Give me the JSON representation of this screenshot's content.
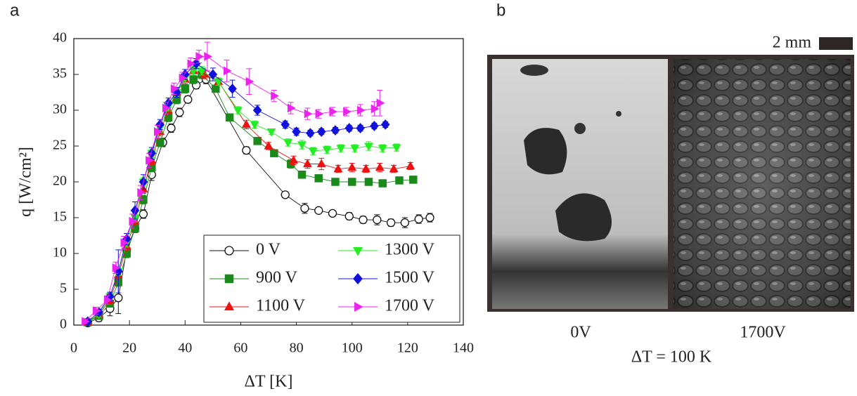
{
  "chart_data": {
    "type": "scatter",
    "panel_label": "a",
    "x_label": "ΔT [K]",
    "y_label": "q [W/cm²]",
    "xlim": [
      0,
      140
    ],
    "xticks": [
      0,
      20,
      40,
      60,
      80,
      100,
      120,
      140
    ],
    "ylim": [
      0,
      40
    ],
    "yticks": [
      0,
      5,
      10,
      15,
      20,
      25,
      30,
      35,
      40
    ],
    "legend": "lower right",
    "series": [
      {
        "name": "0 V",
        "color": "#111111",
        "marker": "circle-open",
        "x": [
          5,
          9,
          13,
          16,
          19,
          22,
          25,
          28,
          32,
          35,
          38,
          41,
          44,
          47.5,
          62,
          76,
          83,
          88,
          93,
          99,
          104,
          109,
          114,
          119,
          124,
          128
        ],
        "values": [
          0.3,
          1,
          2.3,
          3.8,
          10.5,
          13.5,
          15.5,
          21,
          25.5,
          27.5,
          29.7,
          31.5,
          33.5,
          34.3,
          24.4,
          18.2,
          16.3,
          16,
          15.6,
          15.2,
          14.7,
          14.7,
          14.3,
          14.3,
          14.8,
          15
        ],
        "errors": [
          0.4,
          0.5,
          1,
          2.2,
          0.8,
          0.6,
          0.6,
          0.8,
          0.6,
          0.6,
          0.6,
          0.5,
          0.5,
          0.6,
          0.5,
          0.4,
          0.7,
          0.4,
          0.4,
          0.5,
          0.5,
          0.7,
          0.5,
          0.7,
          0.6,
          0.6
        ]
      },
      {
        "name": "900 V",
        "color": "#1a8a1a",
        "marker": "square",
        "x": [
          5,
          9,
          13,
          16,
          19,
          22,
          25,
          28,
          31,
          34,
          37,
          40,
          43,
          46,
          51,
          56,
          66,
          72,
          78,
          82,
          88,
          94,
          100,
          106,
          111,
          117,
          122
        ],
        "values": [
          0.4,
          1.3,
          3,
          6,
          10,
          13.5,
          17.5,
          22,
          25.5,
          29,
          31.5,
          33,
          34.3,
          35,
          33,
          29,
          25.7,
          24,
          22.5,
          21,
          20.5,
          20,
          20,
          20,
          19.8,
          20.2,
          20.3
        ],
        "errors": [
          0.3,
          0.4,
          0.5,
          0.6,
          0.6,
          0.6,
          0.6,
          0.6,
          0.6,
          0.6,
          0.6,
          0.6,
          0.6,
          0.6,
          0.5,
          0.5,
          0.4,
          0.4,
          0.6,
          0.4,
          0.4,
          0.4,
          0.4,
          0.4,
          0.5,
          0.4,
          0.5
        ]
      },
      {
        "name": "1100 V",
        "color": "#ee1111",
        "marker": "triangle-up",
        "x": [
          5,
          9,
          13,
          16,
          19,
          22,
          25,
          28,
          31,
          34,
          37,
          40,
          43,
          47,
          52,
          62,
          70,
          79,
          84,
          89,
          95,
          100,
          105,
          110,
          115,
          121
        ],
        "values": [
          0.4,
          1.5,
          3.5,
          7,
          11,
          14.5,
          19,
          23,
          27,
          30,
          32.5,
          34.3,
          35.5,
          35,
          34,
          28,
          25,
          23,
          22.5,
          22.5,
          21.8,
          22,
          21.8,
          22,
          21.8,
          22.2
        ],
        "errors": [
          0.3,
          0.4,
          0.5,
          0.6,
          0.6,
          0.6,
          0.6,
          0.6,
          0.6,
          0.6,
          0.6,
          0.6,
          0.6,
          0.6,
          0.5,
          0.6,
          0.5,
          0.6,
          0.6,
          0.8,
          0.5,
          0.6,
          0.5,
          0.6,
          0.5,
          0.5
        ]
      },
      {
        "name": "1300 V",
        "color": "#22ee22",
        "marker": "triangle-down",
        "x": [
          5,
          9,
          13,
          16,
          19,
          22,
          25,
          28,
          31,
          34,
          37,
          40,
          43,
          46,
          52,
          59,
          65,
          71,
          77,
          82,
          86,
          91,
          96,
          101,
          106,
          111,
          116
        ],
        "values": [
          0.5,
          1.5,
          4,
          7.5,
          11.5,
          15,
          20,
          24,
          27.5,
          30.5,
          32.5,
          34.5,
          35.5,
          35.5,
          34,
          30,
          28,
          27,
          25.5,
          25.2,
          24.3,
          24.5,
          24.7,
          24.7,
          25,
          24.7,
          24.8
        ],
        "errors": [
          0.3,
          0.4,
          0.5,
          0.6,
          0.6,
          0.6,
          0.6,
          0.6,
          0.6,
          0.6,
          0.6,
          0.6,
          0.6,
          0.6,
          0.5,
          0.5,
          0.5,
          0.4,
          0.5,
          0.6,
          0.5,
          0.5,
          0.5,
          0.5,
          0.6,
          0.5,
          0.5
        ]
      },
      {
        "name": "1500 V",
        "color": "#1010dd",
        "marker": "diamond",
        "x": [
          5,
          9,
          13,
          16,
          19,
          22,
          25,
          28,
          31,
          34,
          37,
          40,
          44,
          50,
          57,
          66,
          76,
          80,
          85,
          89,
          94,
          99,
          103,
          108,
          112
        ],
        "values": [
          0.5,
          1.8,
          4,
          7.5,
          12,
          16,
          20,
          24,
          28,
          31,
          32.5,
          35,
          36.5,
          35,
          33,
          30,
          28,
          27,
          26.8,
          27,
          27.2,
          27.5,
          27.5,
          27.8,
          28
        ],
        "errors": [
          0.3,
          0.4,
          0.6,
          3,
          0.8,
          1.2,
          1,
          0.8,
          0.7,
          0.7,
          0.7,
          0.7,
          0.7,
          0.9,
          1.2,
          0.7,
          0.5,
          0.5,
          0.4,
          0.4,
          0.4,
          0.4,
          0.4,
          0.4,
          0.4
        ]
      },
      {
        "name": "1700 V",
        "color": "#ee22ee",
        "marker": "triangle-right",
        "x": [
          4,
          8,
          12,
          15,
          18,
          21,
          24,
          27,
          30,
          33,
          36,
          39,
          42,
          45,
          48,
          55,
          63,
          72,
          78,
          84,
          88,
          93,
          98,
          103,
          108,
          110
        ],
        "values": [
          0.5,
          2,
          3.5,
          8,
          11.5,
          14.5,
          18.5,
          23,
          27,
          30.3,
          33,
          34.5,
          36.5,
          37.5,
          37.5,
          35.5,
          34,
          32,
          30.3,
          29.5,
          29.5,
          29.8,
          29.8,
          30,
          30.2,
          31
        ],
        "errors": [
          0.3,
          0.5,
          0.6,
          0.8,
          0.9,
          1,
          1,
          1,
          0.9,
          0.8,
          0.8,
          0.8,
          0.8,
          0.9,
          2,
          1.5,
          1.8,
          0.8,
          0.8,
          0.8,
          0.6,
          0.6,
          0.6,
          0.8,
          1,
          1.8
        ]
      }
    ]
  },
  "panel_b": {
    "panel_label": "b",
    "scale_bar": "2 mm",
    "captions": [
      "0V",
      "1700V"
    ],
    "condition": "ΔT = 100 K"
  }
}
